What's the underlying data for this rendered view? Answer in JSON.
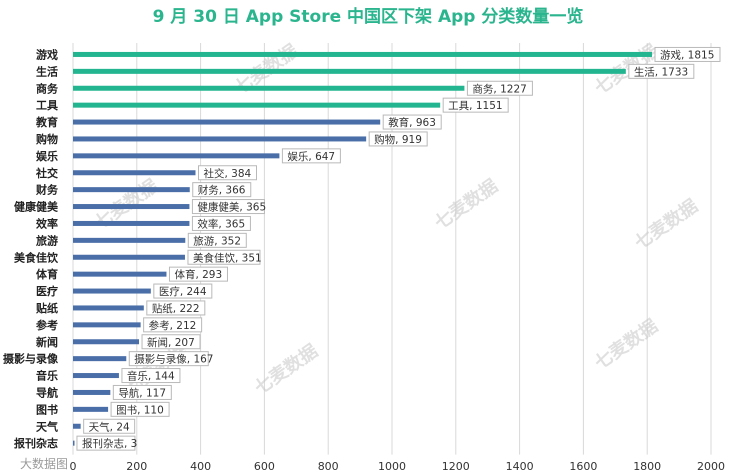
{
  "chart_data": {
    "type": "bar",
    "orientation": "horizontal",
    "title": "9 月 30 日 App Store 中国区下架 App 分类数量一览",
    "categories": [
      "游戏",
      "生活",
      "商务",
      "工具",
      "教育",
      "购物",
      "娱乐",
      "社交",
      "财务",
      "健康健美",
      "效率",
      "旅游",
      "美食佳饮",
      "体育",
      "医疗",
      "贴纸",
      "参考",
      "新闻",
      "摄影与录像",
      "音乐",
      "导航",
      "图书",
      "天气",
      "报刊杂志"
    ],
    "values": [
      1815,
      1733,
      1227,
      1151,
      963,
      919,
      647,
      384,
      366,
      365,
      365,
      352,
      351,
      293,
      244,
      222,
      212,
      207,
      167,
      144,
      117,
      110,
      24,
      3
    ],
    "xlim": [
      0,
      2000
    ],
    "xticks": [
      0,
      200,
      400,
      600,
      800,
      1000,
      1200,
      1400,
      1600,
      1800,
      2000
    ],
    "colors": {
      "top": "#22b58f",
      "rest": "#4a6fa8"
    },
    "highlight_count": 4,
    "data_label_sep": ", ",
    "grid": true,
    "xlabel": "",
    "ylabel": ""
  },
  "watermark": {
    "text": "七麦数据",
    "bottom_text": "大数据图"
  }
}
